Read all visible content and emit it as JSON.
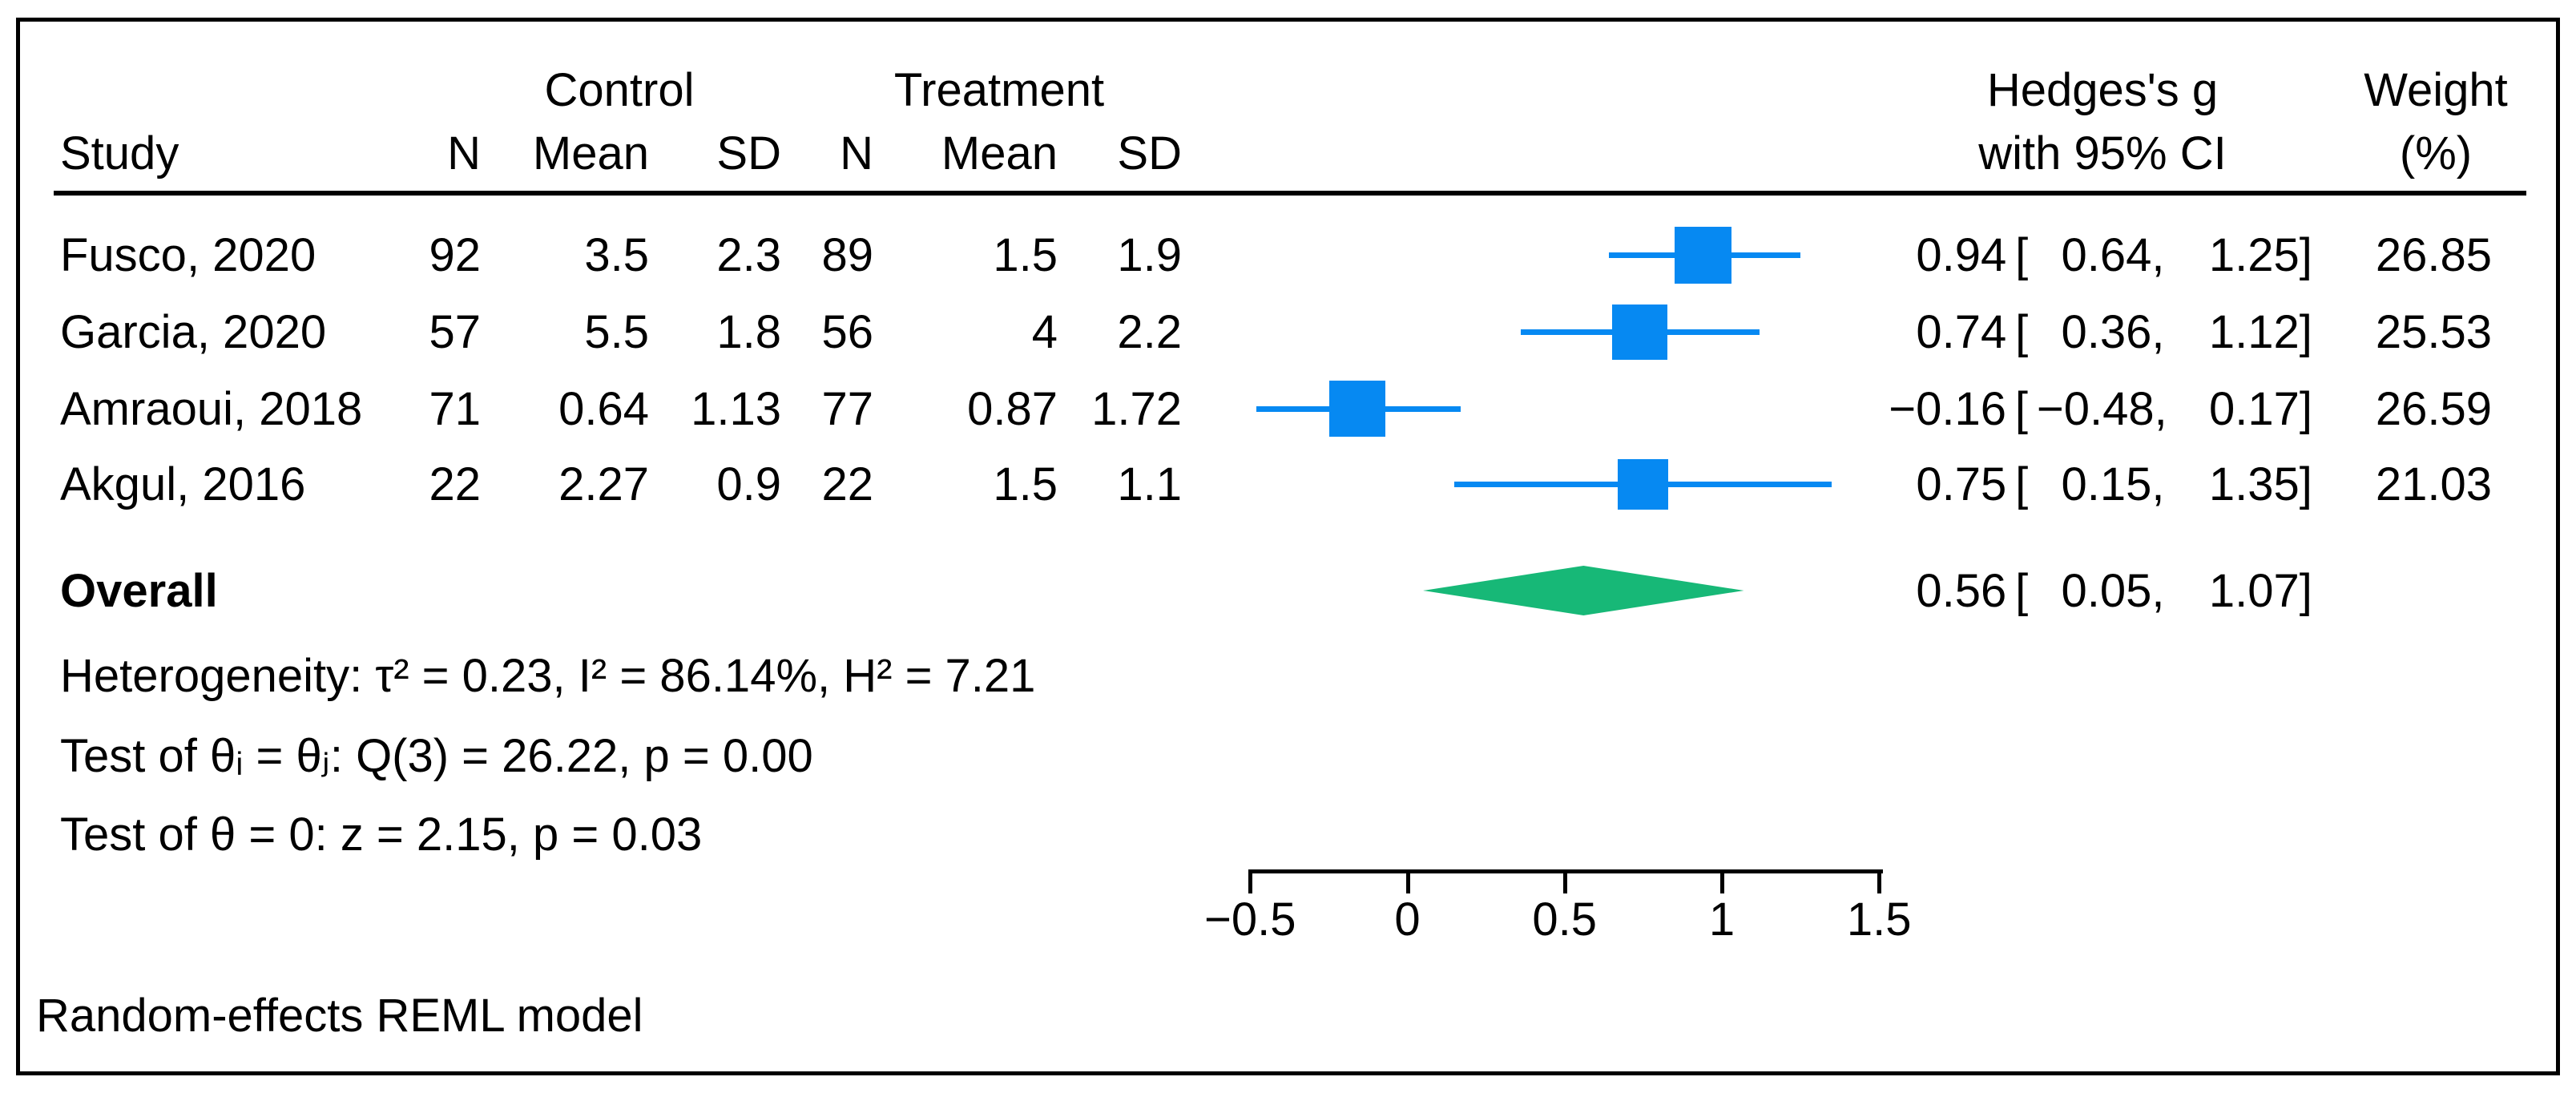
{
  "header": {
    "group1": "Control",
    "group2": "Treatment",
    "study": "Study",
    "n": "N",
    "mean": "Mean",
    "sd": "SD",
    "es_line1": "Hedges's g",
    "es_line2": "with 95% CI",
    "weight_line1": "Weight",
    "weight_line2": "(%)"
  },
  "punct": {
    "open_bracket": "["
  },
  "rows": [
    {
      "study": "Fusco, 2020",
      "n1": "92",
      "mean1": "3.5",
      "sd1": "2.3",
      "n2": "89",
      "mean2": "1.5",
      "sd2": "1.9",
      "g": "0.94",
      "lo": "0.64,",
      "hi": "1.25]",
      "weight": "26.85"
    },
    {
      "study": "Garcia, 2020",
      "n1": "57",
      "mean1": "5.5",
      "sd1": "1.8",
      "n2": "56",
      "mean2": "4",
      "sd2": "2.2",
      "g": "0.74",
      "lo": "0.36,",
      "hi": "1.12]",
      "weight": "25.53"
    },
    {
      "study": "Amraoui, 2018",
      "n1": "71",
      "mean1": "0.64",
      "sd1": "1.13",
      "n2": "77",
      "mean2": "0.87",
      "sd2": "1.72",
      "g": "−0.16",
      "lo": "−0.48,",
      "hi": "0.17]",
      "weight": "26.59"
    },
    {
      "study": "Akgul, 2016",
      "n1": "22",
      "mean1": "2.27",
      "sd1": "0.9",
      "n2": "22",
      "mean2": "1.5",
      "sd2": "1.1",
      "g": "0.75",
      "lo": "0.15,",
      "hi": "1.35]",
      "weight": "21.03"
    }
  ],
  "overall": {
    "label": "Overall",
    "g": "0.56",
    "lo": "0.05,",
    "hi": "1.07]"
  },
  "stats": {
    "heterogeneity": "Heterogeneity: τ² = 0.23, I² = 86.14%, H² = 7.21",
    "test_homogeneity": "Test of θᵢ = θⱼ: Q(3) = 26.22, p = 0.00",
    "test_overall": "Test of θ = 0: z = 2.15, p = 0.03"
  },
  "footer": "Random-effects REML model",
  "chart_data": {
    "type": "forest",
    "effect_measure": "Hedges's g",
    "title": "",
    "xlim": [
      -0.5,
      1.5
    ],
    "x_ticks": [
      -0.5,
      0,
      0.5,
      1,
      1.5
    ],
    "x_tick_labels": [
      "−0.5",
      "0",
      "0.5",
      "1",
      "1.5"
    ],
    "studies": [
      {
        "name": "Fusco, 2020",
        "control": {
          "n": 92,
          "mean": 3.5,
          "sd": 2.3
        },
        "treatment": {
          "n": 89,
          "mean": 1.5,
          "sd": 1.9
        },
        "g": 0.94,
        "ci": [
          0.64,
          1.25
        ],
        "weight_pct": 26.85
      },
      {
        "name": "Garcia, 2020",
        "control": {
          "n": 57,
          "mean": 5.5,
          "sd": 1.8
        },
        "treatment": {
          "n": 56,
          "mean": 4,
          "sd": 2.2
        },
        "g": 0.74,
        "ci": [
          0.36,
          1.12
        ],
        "weight_pct": 25.53
      },
      {
        "name": "Amraoui, 2018",
        "control": {
          "n": 71,
          "mean": 0.64,
          "sd": 1.13
        },
        "treatment": {
          "n": 77,
          "mean": 0.87,
          "sd": 1.72
        },
        "g": -0.16,
        "ci": [
          -0.48,
          0.17
        ],
        "weight_pct": 26.59
      },
      {
        "name": "Akgul, 2016",
        "control": {
          "n": 22,
          "mean": 2.27,
          "sd": 0.9
        },
        "treatment": {
          "n": 22,
          "mean": 1.5,
          "sd": 1.1
        },
        "g": 0.75,
        "ci": [
          0.15,
          1.35
        ],
        "weight_pct": 21.03
      }
    ],
    "overall": {
      "g": 0.56,
      "ci": [
        0.05,
        1.07
      ]
    },
    "heterogeneity": {
      "tau2": 0.23,
      "I2_pct": 86.14,
      "H2": 7.21
    },
    "test_homogeneity": {
      "df": 3,
      "Q": 26.22,
      "p": 0.0
    },
    "test_overall": {
      "z": 2.15,
      "p": 0.03
    },
    "model": "Random-effects REML model",
    "marker_color": "#0689f2",
    "diamond_color": "#17b877",
    "axis_color": "#000000",
    "legend": "none",
    "grid": false
  }
}
